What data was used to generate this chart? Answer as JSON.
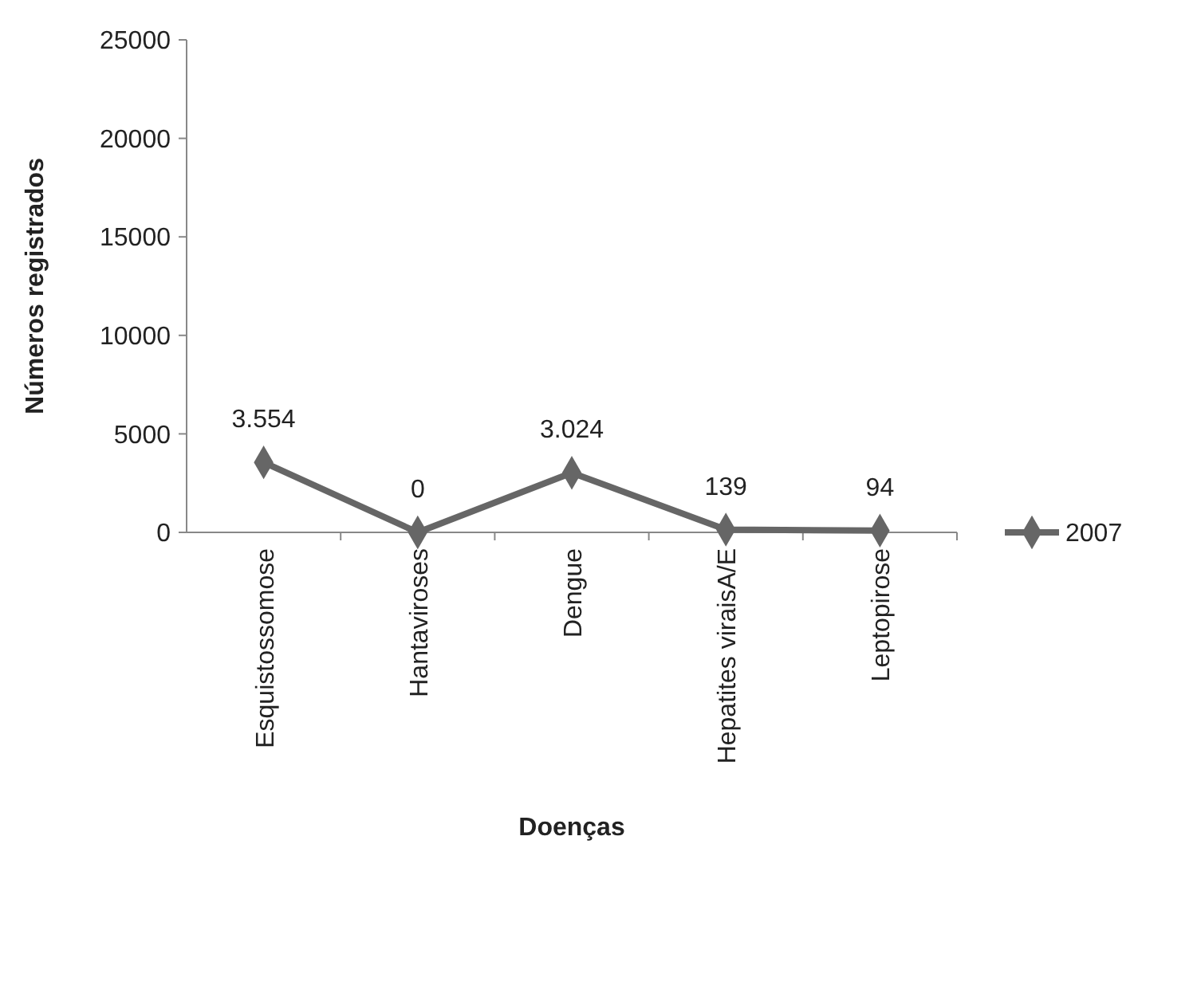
{
  "chart_data": {
    "type": "line",
    "xlabel": "Doenças",
    "ylabel": "Números registrados",
    "categories": [
      "Esquistossomose",
      "Hantaviroses",
      "Dengue",
      "Hepatites viraisA/E",
      "Leptopirose"
    ],
    "series": [
      {
        "name": "2007",
        "color": "#666666",
        "values": [
          3554,
          0,
          3024,
          139,
          94
        ],
        "value_labels": [
          "3.554",
          "0",
          "3.024",
          "139",
          "94"
        ]
      }
    ],
    "ylim": [
      0,
      25000
    ],
    "yticks": [
      0,
      5000,
      10000,
      15000,
      20000,
      25000
    ],
    "grid": false,
    "legend": "right",
    "marker": "diamond",
    "line_style": "solid"
  }
}
